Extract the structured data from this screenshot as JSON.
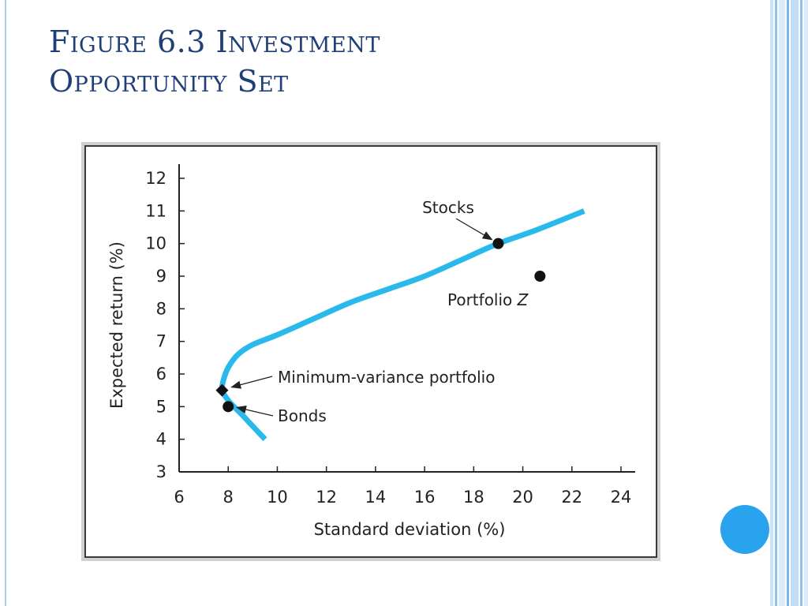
{
  "slide": {
    "title_line1": "Figure 6.3 Investment",
    "title_line2": "Opportunity Set"
  },
  "colors": {
    "title": "#1f3f77",
    "curve": "#29b9ea",
    "accent_circle": "#2aa3ee",
    "point": "#111111"
  },
  "chart_data": {
    "type": "line",
    "xlabel": "Standard deviation (%)",
    "ylabel": "Expected return (%)",
    "xlim": [
      6,
      24
    ],
    "ylim": [
      3,
      12
    ],
    "xticks": [
      6,
      8,
      10,
      12,
      14,
      16,
      18,
      20,
      22,
      24
    ],
    "yticks": [
      3,
      4,
      5,
      6,
      7,
      8,
      9,
      10,
      11,
      12
    ],
    "grid": false,
    "series": [
      {
        "x": [
          9.5,
          9.0,
          8.5,
          8.1,
          7.85,
          7.75,
          7.8,
          8.0,
          8.4,
          9.0,
          10.0,
          11.5,
          13.0,
          14.5,
          16.0,
          17.5,
          19.0,
          20.5,
          22.5
        ],
        "y": [
          4.0,
          4.4,
          4.8,
          5.1,
          5.35,
          5.5,
          5.8,
          6.2,
          6.6,
          6.9,
          7.2,
          7.7,
          8.2,
          8.6,
          9.0,
          9.5,
          10.0,
          10.4,
          11.0
        ]
      }
    ],
    "points": [
      {
        "label": "Stocks",
        "x": 19.0,
        "y": 10.0,
        "marker": "circle"
      },
      {
        "label": "Portfolio",
        "label_italic": "Z",
        "x": 20.7,
        "y": 9.0,
        "marker": "circle"
      },
      {
        "label": "Minimum-variance portfolio",
        "x": 7.75,
        "y": 5.5,
        "marker": "diamond"
      },
      {
        "label": "Bonds",
        "x": 8.0,
        "y": 5.0,
        "marker": "circle"
      }
    ]
  }
}
